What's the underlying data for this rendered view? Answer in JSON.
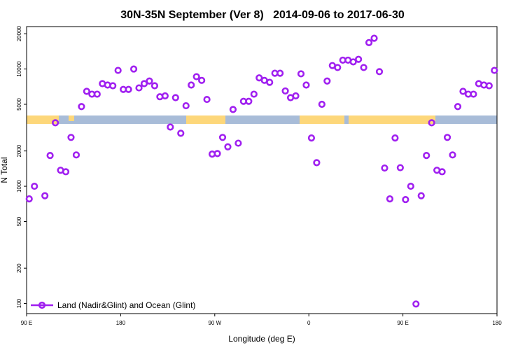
{
  "chart_data": {
    "type": "scatter",
    "title": "30N-35N September (Ver 8)   2014-09-06 to 2017-06-30",
    "x_label": "Longitude (deg E)",
    "y_label": "N Total",
    "log_y": true,
    "legend": "bottom-left",
    "x": [
      92.5,
      97.5,
      102.5,
      107.5,
      112.5,
      117.5,
      122.5,
      127.5,
      132.5,
      137.5,
      142.5,
      147.5,
      152.5,
      157.5,
      162.5,
      167.5,
      172.5,
      177.5,
      182.5,
      187.5,
      192.5,
      197.5,
      202.5,
      207.5,
      212.5,
      217.5,
      222.5,
      227.5,
      232.5,
      237.5,
      242.5,
      247.5,
      252.5,
      257.5,
      262.5,
      267.5,
      272.5,
      277.5,
      282.5,
      287.5,
      292.5,
      297.5,
      302.5,
      307.5,
      312.5,
      317.5,
      322.5,
      327.5,
      332.5,
      337.5,
      342.5,
      347.5,
      352.5,
      357.5,
      362.5,
      367.5,
      372.5,
      377.5,
      382.5,
      387.5,
      392.5,
      397.5,
      402.5,
      407.5,
      412.5,
      417.5,
      422.5,
      427.5,
      432.5,
      437.5,
      442.5,
      447.5,
      452.5,
      457.5,
      462.5,
      467.5,
      472.5,
      477.5,
      482.5,
      487.5,
      492.5,
      497.5,
      502.5,
      507.5,
      512.5,
      517.5,
      522.5,
      527.5,
      532.5,
      537.5
    ],
    "series": [
      {
        "name": "Land (Nadir&Glint) and Ocean (Glint)",
        "color": "#a020f0",
        "values": [
          780,
          1000,
          null,
          830,
          1830,
          3480,
          1370,
          1330,
          2610,
          1850,
          4780,
          6450,
          6100,
          6100,
          7500,
          7300,
          7200,
          9730,
          6700,
          6700,
          10000,
          6900,
          7500,
          7900,
          7200,
          5800,
          5900,
          3200,
          5700,
          2830,
          4860,
          7300,
          8600,
          8000,
          5500,
          1880,
          1900,
          2610,
          2170,
          4520,
          2330,
          5300,
          5300,
          6100,
          8400,
          8000,
          7700,
          9200,
          9200,
          6500,
          5700,
          5900,
          9100,
          7300,
          2580,
          1590,
          5000,
          7900,
          10700,
          10300,
          11900,
          11900,
          11500,
          12100,
          10300,
          16800,
          18300,
          9500,
          1430,
          780,
          2580,
          1440,
          770,
          1000,
          99,
          830,
          1830,
          3480,
          1370,
          1330,
          2610,
          1850,
          4780,
          6450,
          6100,
          6100,
          7500,
          7300,
          7200,
          9730
        ]
      }
    ],
    "xlim": [
      90,
      540
    ],
    "xticks": [
      {
        "value": 90,
        "label": "90 E"
      },
      {
        "value": 180,
        "label": "180"
      },
      {
        "value": 270,
        "label": "90 W"
      },
      {
        "value": 360,
        "label": "0"
      },
      {
        "value": 450,
        "label": "90 E"
      },
      {
        "value": 540,
        "label": "180"
      }
    ],
    "ylim": [
      82,
      23000
    ],
    "yticks": [
      100,
      200,
      500,
      1000,
      2000,
      5000,
      10000,
      20000
    ]
  }
}
